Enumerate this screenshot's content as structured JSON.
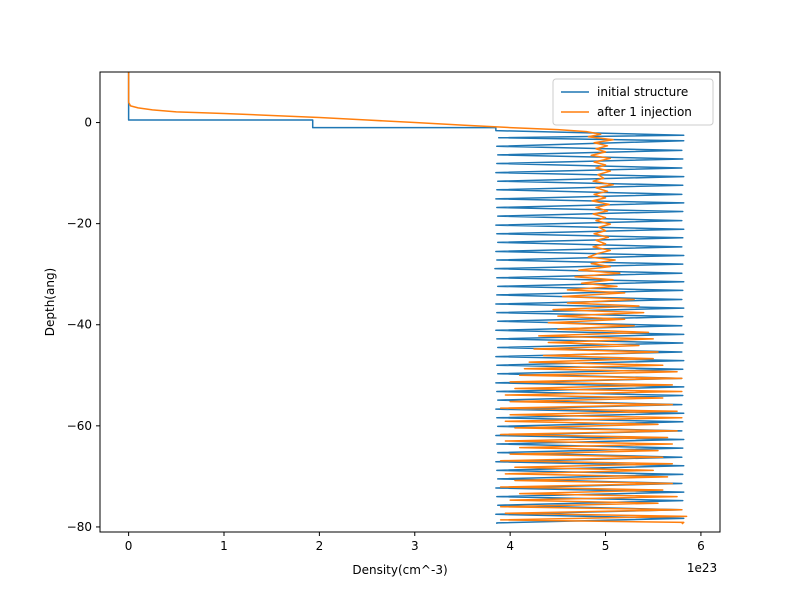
{
  "chart_data": {
    "type": "line",
    "title": "",
    "xlabel": "Density(cm^-3)",
    "ylabel": "Depth(ang)",
    "x_offset_label": "1e23",
    "xlim": [
      -0.3,
      6.2
    ],
    "ylim": [
      -81,
      10
    ],
    "x_ticks": [
      0,
      1,
      2,
      3,
      4,
      5,
      6
    ],
    "x_tick_labels": [
      "0",
      "1",
      "2",
      "3",
      "4",
      "5",
      "6"
    ],
    "y_ticks": [
      0,
      -20,
      -40,
      -60,
      -80
    ],
    "y_tick_labels": [
      "0",
      "−20",
      "−40",
      "−60",
      "−80"
    ],
    "grid": false,
    "legend_position": "top-right",
    "series": [
      {
        "name": "initial structure",
        "color": "#1f77b4",
        "points": [
          [
            0,
            10
          ],
          [
            0,
            0.5
          ],
          [
            1.93,
            0.5
          ],
          [
            1.93,
            -1
          ],
          [
            3.85,
            -1
          ],
          [
            3.85,
            -1.6
          ],
          [
            5.82,
            -2.5
          ],
          [
            3.88,
            -3
          ],
          [
            5.82,
            -3.6
          ],
          [
            3.86,
            -4.7
          ],
          [
            5.8,
            -5.5
          ],
          [
            3.87,
            -6.4
          ],
          [
            5.81,
            -7.2
          ],
          [
            3.86,
            -8.1
          ],
          [
            5.8,
            -9
          ],
          [
            3.85,
            -9.9
          ],
          [
            5.82,
            -10.7
          ],
          [
            3.87,
            -11.6
          ],
          [
            5.81,
            -12.4
          ],
          [
            3.86,
            -13.3
          ],
          [
            5.8,
            -14.2
          ],
          [
            3.85,
            -15.1
          ],
          [
            5.82,
            -15.9
          ],
          [
            3.86,
            -16.8
          ],
          [
            5.81,
            -17.6
          ],
          [
            3.87,
            -18.5
          ],
          [
            5.8,
            -19.4
          ],
          [
            3.85,
            -20.3
          ],
          [
            5.82,
            -21.1
          ],
          [
            3.86,
            -22
          ],
          [
            5.81,
            -22.8
          ],
          [
            3.87,
            -23.7
          ],
          [
            5.8,
            -24.6
          ],
          [
            3.85,
            -25.5
          ],
          [
            5.82,
            -26.3
          ],
          [
            3.86,
            -27.2
          ],
          [
            5.81,
            -28
          ],
          [
            3.84,
            -28.9
          ],
          [
            5.8,
            -29.8
          ],
          [
            3.86,
            -30.7
          ],
          [
            5.82,
            -31.5
          ],
          [
            3.87,
            -32.4
          ],
          [
            5.81,
            -33.2
          ],
          [
            3.86,
            -34.1
          ],
          [
            5.8,
            -35
          ],
          [
            3.85,
            -35.9
          ],
          [
            5.82,
            -36.7
          ],
          [
            3.86,
            -37.6
          ],
          [
            5.81,
            -38.4
          ],
          [
            3.87,
            -39.3
          ],
          [
            5.8,
            -40.2
          ],
          [
            3.85,
            -41.1
          ],
          [
            5.82,
            -41.9
          ],
          [
            3.86,
            -42.8
          ],
          [
            5.81,
            -43.6
          ],
          [
            3.87,
            -44.5
          ],
          [
            5.8,
            -45.4
          ],
          [
            3.85,
            -46.3
          ],
          [
            5.82,
            -47.1
          ],
          [
            3.86,
            -48
          ],
          [
            5.81,
            -48.8
          ],
          [
            3.87,
            -49.7
          ],
          [
            5.8,
            -50.6
          ],
          [
            3.85,
            -51.5
          ],
          [
            5.82,
            -52.3
          ],
          [
            3.86,
            -53.2
          ],
          [
            5.81,
            -54
          ],
          [
            3.87,
            -54.9
          ],
          [
            5.8,
            -55.8
          ],
          [
            3.85,
            -56.7
          ],
          [
            5.82,
            -57.5
          ],
          [
            3.86,
            -58.4
          ],
          [
            5.81,
            -59.2
          ],
          [
            3.87,
            -60.1
          ],
          [
            5.8,
            -61
          ],
          [
            3.85,
            -61.9
          ],
          [
            5.82,
            -62.7
          ],
          [
            3.86,
            -63.6
          ],
          [
            5.81,
            -64.4
          ],
          [
            3.87,
            -65.3
          ],
          [
            5.8,
            -66.2
          ],
          [
            3.85,
            -67.1
          ],
          [
            5.82,
            -67.9
          ],
          [
            3.86,
            -68.8
          ],
          [
            5.81,
            -69.6
          ],
          [
            3.87,
            -70.5
          ],
          [
            5.8,
            -71.4
          ],
          [
            3.85,
            -72.3
          ],
          [
            5.82,
            -73.1
          ],
          [
            3.86,
            -74
          ],
          [
            5.81,
            -74.8
          ],
          [
            3.87,
            -75.7
          ],
          [
            5.8,
            -76.6
          ],
          [
            3.85,
            -77.5
          ],
          [
            5.82,
            -78.3
          ],
          [
            3.86,
            -79.2
          ],
          [
            3.86,
            -79.4
          ]
        ]
      },
      {
        "name": "after 1 injection",
        "color": "#ff7f0e",
        "points": [
          [
            0,
            10
          ],
          [
            0,
            4
          ],
          [
            0.02,
            3.3
          ],
          [
            0.1,
            2.9
          ],
          [
            0.25,
            2.5
          ],
          [
            0.5,
            2.1
          ],
          [
            1.0,
            1.8
          ],
          [
            1.5,
            1.4
          ],
          [
            2.0,
            1.0
          ],
          [
            2.5,
            0.5
          ],
          [
            3.0,
            0.0
          ],
          [
            3.5,
            -0.5
          ],
          [
            4.0,
            -1.0
          ],
          [
            4.5,
            -1.4
          ],
          [
            4.8,
            -1.8
          ],
          [
            4.95,
            -2.3
          ],
          [
            4.82,
            -2.8
          ],
          [
            5.08,
            -3.4
          ],
          [
            4.88,
            -4.0
          ],
          [
            5.02,
            -4.6
          ],
          [
            4.9,
            -5.2
          ],
          [
            5.0,
            -5.8
          ],
          [
            4.85,
            -6.5
          ],
          [
            5.05,
            -7.1
          ],
          [
            4.88,
            -7.8
          ],
          [
            5.0,
            -8.4
          ],
          [
            4.9,
            -9.0
          ],
          [
            5.05,
            -9.6
          ],
          [
            4.92,
            -10.3
          ],
          [
            4.98,
            -11.0
          ],
          [
            4.87,
            -11.6
          ],
          [
            5.08,
            -12.3
          ],
          [
            4.9,
            -12.9
          ],
          [
            5.02,
            -13.6
          ],
          [
            4.88,
            -14.2
          ],
          [
            5.0,
            -14.9
          ],
          [
            4.86,
            -15.5
          ],
          [
            5.04,
            -16.2
          ],
          [
            4.9,
            -16.8
          ],
          [
            5.02,
            -17.5
          ],
          [
            4.87,
            -18.1
          ],
          [
            5.0,
            -18.8
          ],
          [
            4.9,
            -19.4
          ],
          [
            5.05,
            -20.1
          ],
          [
            4.93,
            -20.7
          ],
          [
            5.0,
            -21.4
          ],
          [
            4.88,
            -22.0
          ],
          [
            5.03,
            -22.7
          ],
          [
            4.9,
            -23.3
          ],
          [
            5.0,
            -24.0
          ],
          [
            4.87,
            -24.6
          ],
          [
            5.05,
            -25.3
          ],
          [
            4.92,
            -25.9
          ],
          [
            4.82,
            -26.6
          ],
          [
            5.1,
            -27.2
          ],
          [
            4.85,
            -27.9
          ],
          [
            5.05,
            -28.5
          ],
          [
            4.72,
            -29.2
          ],
          [
            5.15,
            -29.8
          ],
          [
            4.68,
            -30.5
          ],
          [
            5.08,
            -31.1
          ],
          [
            4.75,
            -31.8
          ],
          [
            5.12,
            -32.4
          ],
          [
            4.6,
            -33.1
          ],
          [
            5.2,
            -33.7
          ],
          [
            4.55,
            -34.4
          ],
          [
            5.3,
            -35.0
          ],
          [
            4.6,
            -35.7
          ],
          [
            5.35,
            -36.3
          ],
          [
            4.45,
            -37.0
          ],
          [
            5.4,
            -37.6
          ],
          [
            4.5,
            -38.3
          ],
          [
            5.2,
            -38.9
          ],
          [
            4.4,
            -39.6
          ],
          [
            5.3,
            -40.2
          ],
          [
            4.5,
            -40.9
          ],
          [
            5.45,
            -41.5
          ],
          [
            4.3,
            -42.2
          ],
          [
            5.5,
            -42.8
          ],
          [
            4.4,
            -43.5
          ],
          [
            5.35,
            -44.1
          ],
          [
            4.25,
            -44.8
          ],
          [
            5.55,
            -45.4
          ],
          [
            4.35,
            -46.1
          ],
          [
            5.5,
            -46.7
          ],
          [
            4.2,
            -47.4
          ],
          [
            5.6,
            -48.0
          ],
          [
            4.15,
            -48.7
          ],
          [
            5.75,
            -49.3
          ],
          [
            4.1,
            -50.0
          ],
          [
            5.8,
            -50.6
          ],
          [
            4.0,
            -51.3
          ],
          [
            5.7,
            -51.9
          ],
          [
            4.05,
            -52.6
          ],
          [
            5.8,
            -53.2
          ],
          [
            3.95,
            -53.9
          ],
          [
            5.6,
            -54.5
          ],
          [
            4.0,
            -55.2
          ],
          [
            5.7,
            -55.8
          ],
          [
            3.9,
            -56.5
          ],
          [
            5.75,
            -57.1
          ],
          [
            4.0,
            -57.8
          ],
          [
            5.8,
            -58.4
          ],
          [
            3.95,
            -59.1
          ],
          [
            5.55,
            -59.7
          ],
          [
            4.05,
            -60.4
          ],
          [
            5.75,
            -61.0
          ],
          [
            3.9,
            -61.7
          ],
          [
            5.65,
            -62.3
          ],
          [
            3.95,
            -63.0
          ],
          [
            5.7,
            -63.6
          ],
          [
            4.1,
            -64.3
          ],
          [
            5.55,
            -64.9
          ],
          [
            4.0,
            -65.6
          ],
          [
            5.6,
            -66.2
          ],
          [
            3.9,
            -66.9
          ],
          [
            5.7,
            -67.5
          ],
          [
            4.05,
            -68.2
          ],
          [
            5.5,
            -68.8
          ],
          [
            3.95,
            -69.5
          ],
          [
            5.65,
            -70.1
          ],
          [
            4.05,
            -70.8
          ],
          [
            5.7,
            -71.4
          ],
          [
            3.9,
            -72.1
          ],
          [
            5.6,
            -72.7
          ],
          [
            4.1,
            -73.4
          ],
          [
            5.75,
            -74.0
          ],
          [
            4.0,
            -74.7
          ],
          [
            5.55,
            -75.3
          ],
          [
            3.9,
            -76.0
          ],
          [
            5.8,
            -76.6
          ],
          [
            3.95,
            -77.3
          ],
          [
            5.85,
            -77.9
          ],
          [
            3.9,
            -78.6
          ],
          [
            5.82,
            -79.1
          ],
          [
            5.8,
            -79.4
          ]
        ]
      }
    ]
  }
}
